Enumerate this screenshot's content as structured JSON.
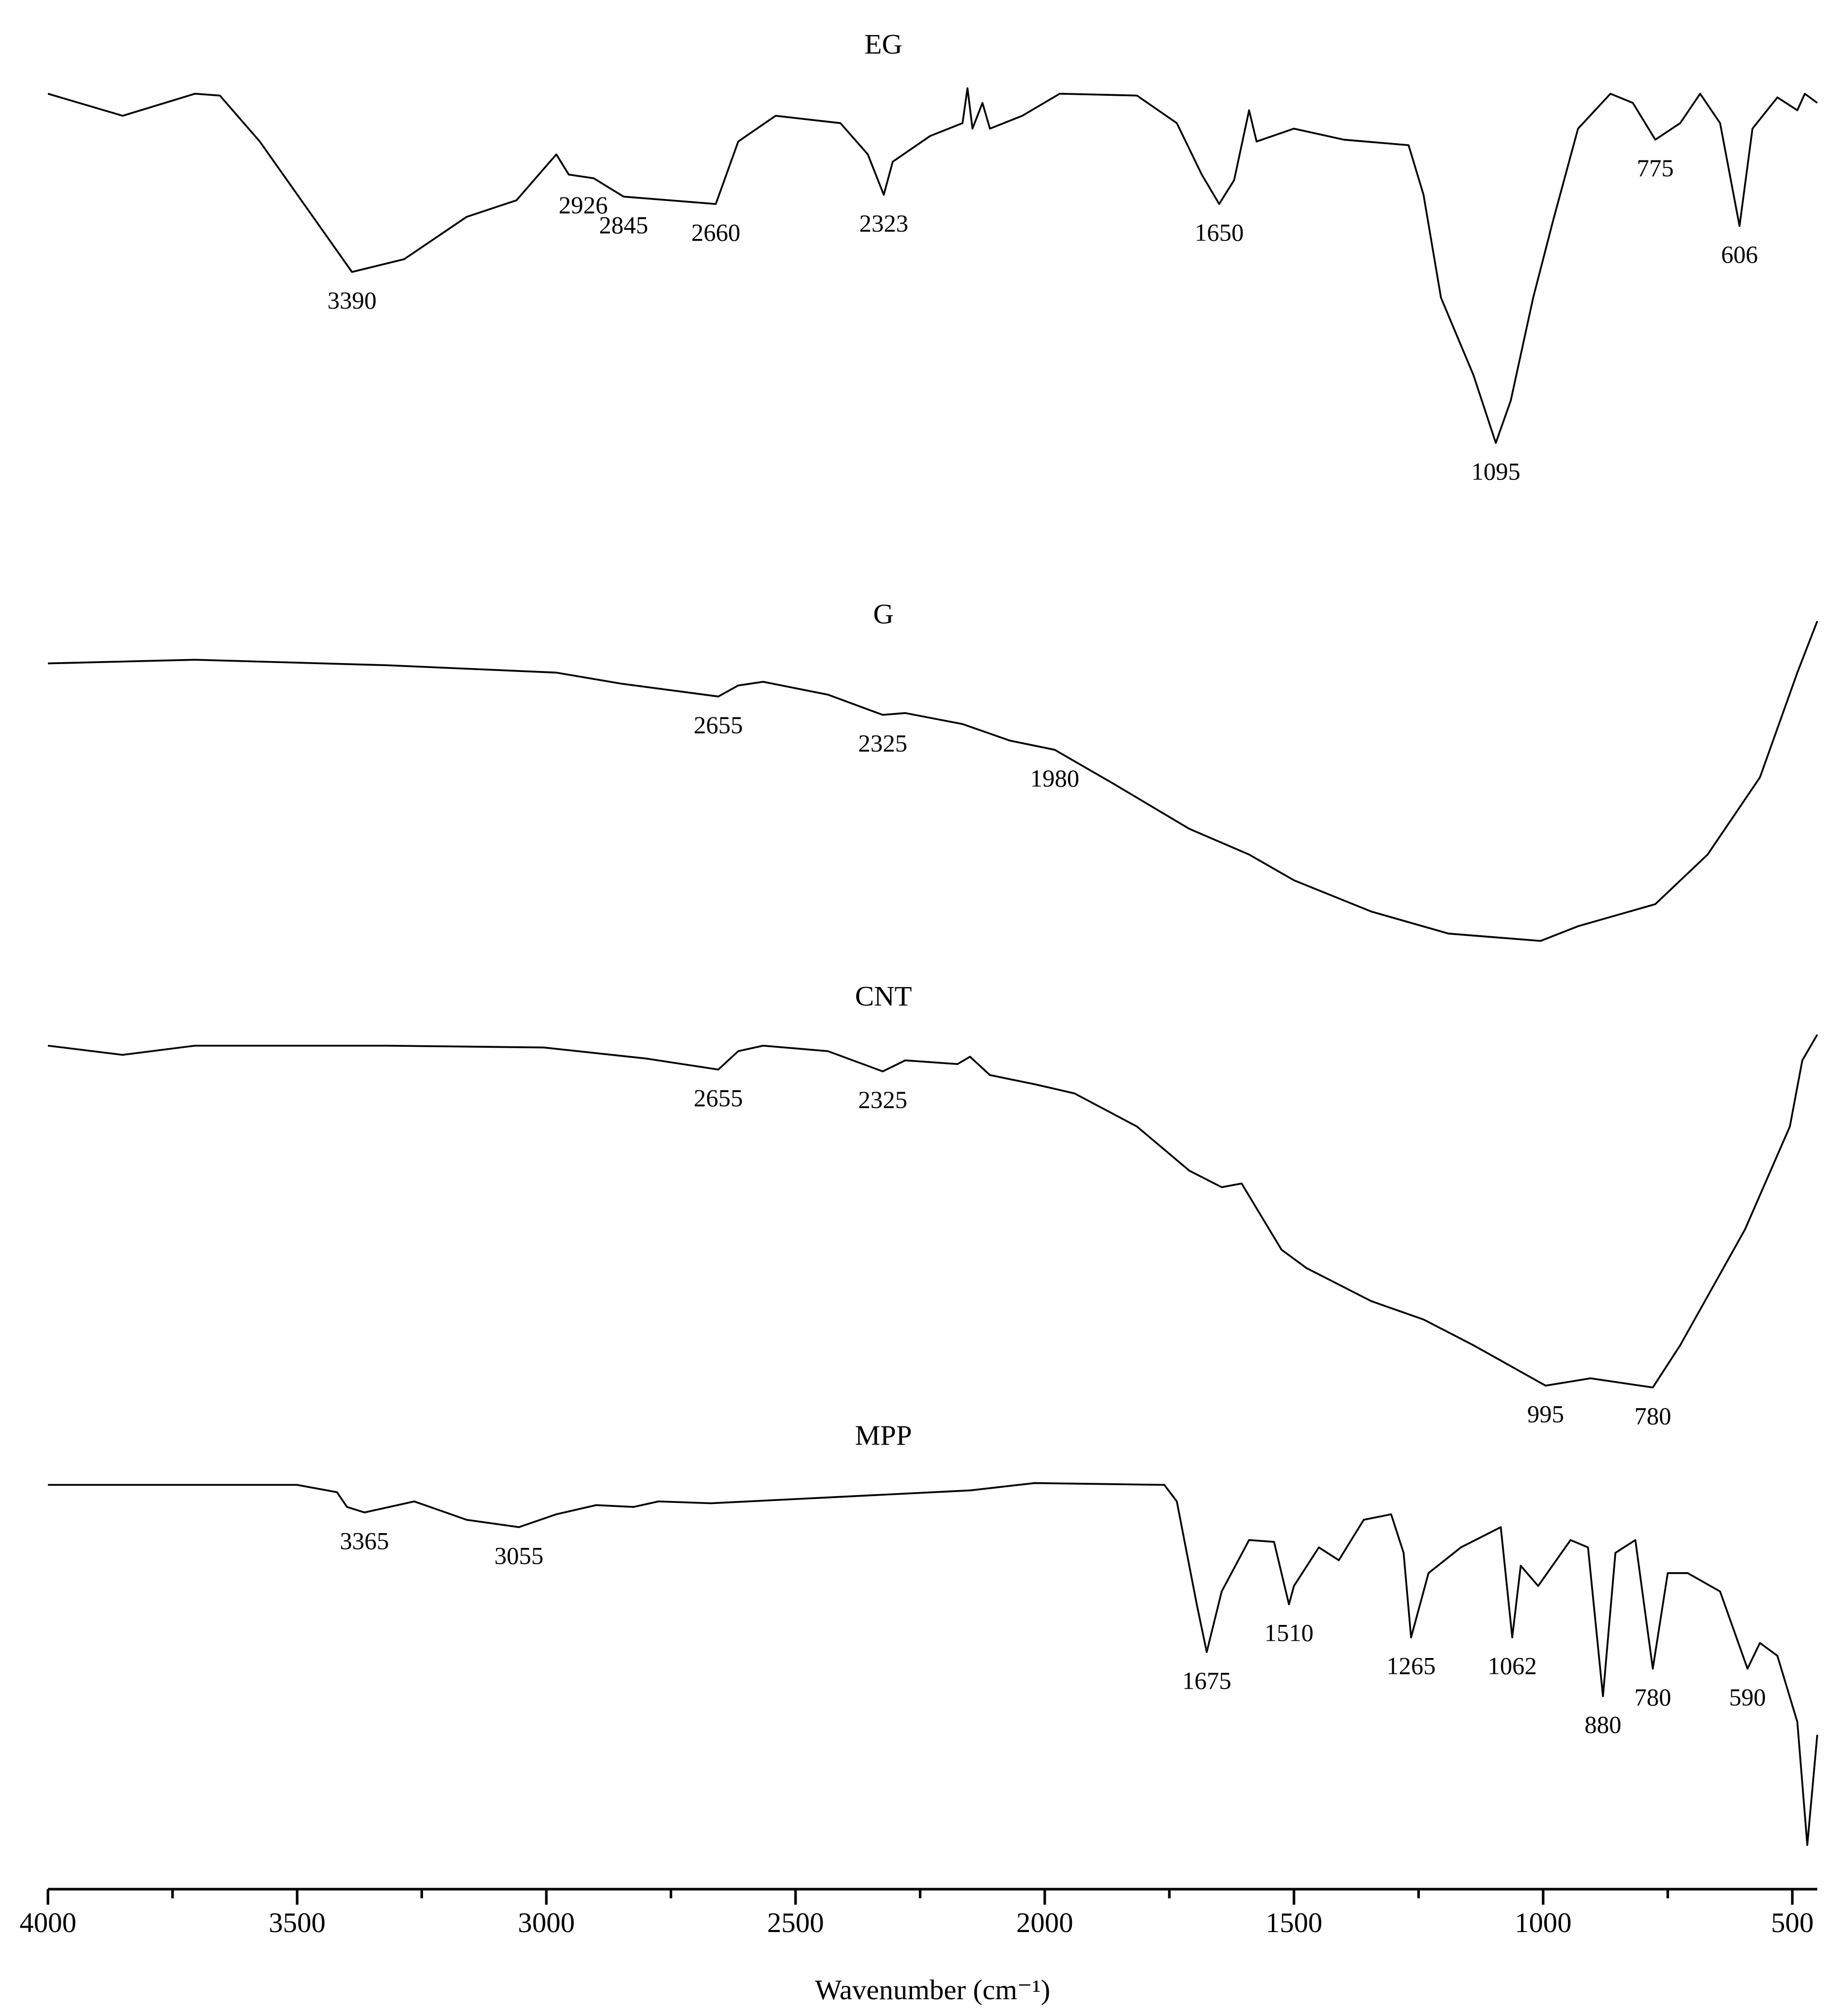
{
  "chart_data": {
    "type": "line",
    "xlabel": "Wavenumber (cm⁻¹)",
    "xlim": [
      4000,
      450
    ],
    "xticks": [
      4000,
      3500,
      3000,
      2500,
      2000,
      1500,
      1000,
      500
    ],
    "xminorticks": [
      3750,
      3250,
      2750,
      2250,
      1750,
      1250,
      750
    ],
    "ylim": [
      0,
      102.8
    ],
    "color": "#000000",
    "series": [
      {
        "name": "EG",
        "x": [
          4000,
          3850,
          3705,
          3655,
          3575,
          3390,
          3285,
          3160,
          3060,
          2980,
          2955,
          2905,
          2845,
          2660,
          2615,
          2540,
          2410,
          2355,
          2323,
          2305,
          2230,
          2165,
          2155,
          2145,
          2125,
          2110,
          2045,
          1970,
          1815,
          1735,
          1685,
          1650,
          1620,
          1590,
          1575,
          1500,
          1400,
          1270,
          1240,
          1205,
          1140,
          1095,
          1065,
          1020,
          980,
          930,
          865,
          820,
          775,
          725,
          685,
          645,
          606,
          580,
          530,
          490,
          475,
          450
        ],
        "values": [
          97.7,
          96.5,
          97.7,
          97.6,
          95.1,
          88.0,
          88.7,
          91.0,
          91.9,
          94.4,
          93.3,
          93.1,
          92.1,
          91.7,
          95.1,
          96.5,
          96.1,
          94.4,
          92.2,
          94.0,
          95.4,
          96.1,
          98.0,
          95.8,
          97.2,
          95.8,
          96.5,
          97.7,
          97.6,
          96.1,
          93.3,
          91.7,
          93.0,
          96.8,
          95.1,
          95.8,
          95.2,
          94.9,
          92.2,
          86.6,
          82.4,
          78.7,
          81.0,
          86.6,
          90.8,
          95.8,
          97.7,
          97.2,
          95.2,
          96.1,
          97.7,
          96.1,
          90.5,
          95.8,
          97.5,
          96.8,
          97.7,
          97.2
        ],
        "peaks": [
          3390,
          2926,
          2845,
          2660,
          2323,
          1650,
          1095,
          775,
          606
        ]
      },
      {
        "name": "G",
        "x": [
          4000,
          3705,
          3320,
          2980,
          2850,
          2655,
          2615,
          2565,
          2435,
          2325,
          2280,
          2165,
          2070,
          1980,
          1865,
          1710,
          1590,
          1500,
          1345,
          1190,
          1005,
          930,
          775,
          670,
          565,
          490,
          450
        ],
        "values": [
          66.7,
          66.9,
          66.6,
          66.2,
          65.6,
          64.9,
          65.5,
          65.7,
          65.0,
          63.9,
          64.0,
          63.4,
          62.5,
          62.0,
          60.2,
          57.7,
          56.3,
          54.9,
          53.2,
          52.0,
          51.6,
          52.4,
          53.6,
          56.3,
          60.5,
          66.2,
          69.0
        ],
        "peaks": [
          2655,
          2325,
          1980
        ]
      },
      {
        "name": "CNT",
        "x": [
          4000,
          3850,
          3705,
          3320,
          3005,
          2800,
          2655,
          2615,
          2565,
          2435,
          2325,
          2280,
          2175,
          2150,
          2110,
          2020,
          1940,
          1815,
          1710,
          1645,
          1605,
          1565,
          1525,
          1475,
          1345,
          1240,
          1140,
          995,
          905,
          780,
          725,
          595,
          505,
          480,
          450
        ],
        "values": [
          45.9,
          45.4,
          45.9,
          45.9,
          45.8,
          45.2,
          44.6,
          45.6,
          45.9,
          45.6,
          44.5,
          45.1,
          44.9,
          45.3,
          44.3,
          43.8,
          43.3,
          41.5,
          39.1,
          38.2,
          38.4,
          36.6,
          34.8,
          33.8,
          32.0,
          31.0,
          29.6,
          27.4,
          27.8,
          27.3,
          29.6,
          35.9,
          41.5,
          45.1,
          46.5
        ],
        "peaks": [
          2655,
          2325,
          995,
          780
        ]
      },
      {
        "name": "MPP",
        "x": [
          4000,
          3500,
          3420,
          3400,
          3365,
          3265,
          3160,
          3055,
          2980,
          2900,
          2825,
          2775,
          2670,
          2150,
          2020,
          1760,
          1735,
          1695,
          1675,
          1645,
          1590,
          1540,
          1510,
          1500,
          1450,
          1410,
          1360,
          1305,
          1280,
          1265,
          1230,
          1165,
          1085,
          1062,
          1045,
          1010,
          945,
          910,
          880,
          855,
          815,
          780,
          750,
          710,
          645,
          590,
          565,
          530,
          490,
          470,
          450
        ],
        "values": [
          22.0,
          22.0,
          21.6,
          20.8,
          20.5,
          21.1,
          20.1,
          19.7,
          20.4,
          20.9,
          20.8,
          21.1,
          21.0,
          21.7,
          22.1,
          22.0,
          21.1,
          15.5,
          12.9,
          16.2,
          19.0,
          18.9,
          15.5,
          16.5,
          18.6,
          17.9,
          20.1,
          20.4,
          18.3,
          13.7,
          17.2,
          18.6,
          19.7,
          13.7,
          17.6,
          16.5,
          19.0,
          18.6,
          10.5,
          18.3,
          19.0,
          12.0,
          17.2,
          17.2,
          16.2,
          12.0,
          13.4,
          12.7,
          9.1,
          2.4,
          8.4
        ],
        "peaks": [
          3365,
          3055,
          1675,
          1510,
          1265,
          1062,
          880,
          780,
          590
        ]
      }
    ]
  }
}
